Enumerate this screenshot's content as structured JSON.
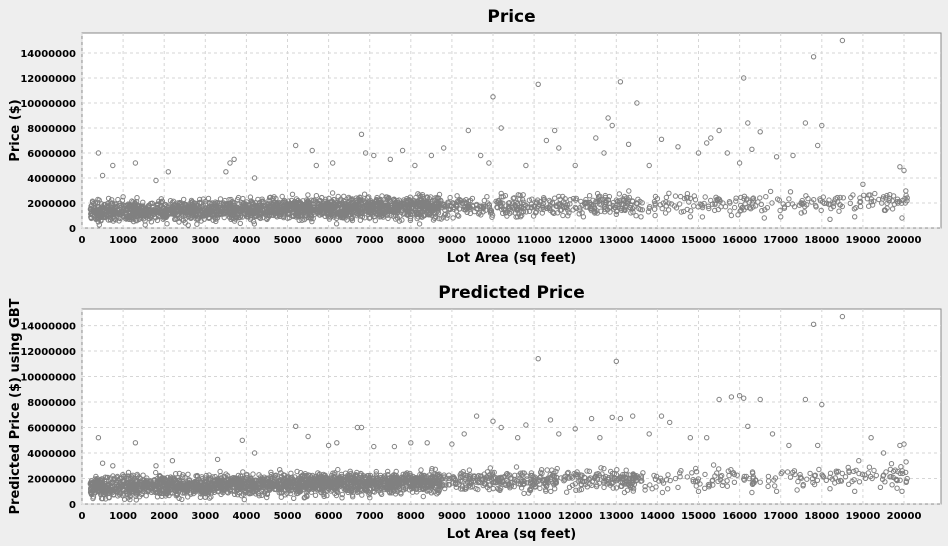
{
  "colors": {
    "background": "#eeeeee",
    "plot_background": "#ffffff",
    "point": "#808080",
    "grid": "#d6d6d6"
  },
  "chart_data": [
    {
      "type": "scatter",
      "title": "Price",
      "xlabel": "Lot Area (sq feet)",
      "ylabel": "Price ($)",
      "xlim": [
        0,
        20900
      ],
      "ylim": [
        0,
        15600000
      ],
      "xticks": [
        0,
        1000,
        2000,
        3000,
        4000,
        5000,
        6000,
        7000,
        8000,
        9000,
        10000,
        11000,
        12000,
        13000,
        14000,
        15000,
        16000,
        17000,
        18000,
        19000,
        20000
      ],
      "yticks": [
        0,
        2000000,
        4000000,
        6000000,
        8000000,
        10000000,
        12000000,
        14000000
      ],
      "grid": true,
      "legend": "none",
      "series": [
        {
          "points": [
            [
              400,
              6000000
            ],
            [
              500,
              4200000
            ],
            [
              750,
              5000000
            ],
            [
              1300,
              5200000
            ],
            [
              1000,
              2500000
            ],
            [
              1800,
              3800000
            ],
            [
              2100,
              4500000
            ],
            [
              3500,
              4500000
            ],
            [
              3600,
              5200000
            ],
            [
              3700,
              5500000
            ],
            [
              4200,
              4000000
            ],
            [
              5200,
              6600000
            ],
            [
              5600,
              6200000
            ],
            [
              5700,
              5000000
            ],
            [
              6100,
              5200000
            ],
            [
              6800,
              7500000
            ],
            [
              6900,
              6000000
            ],
            [
              7100,
              5800000
            ],
            [
              7500,
              5500000
            ],
            [
              7800,
              6200000
            ],
            [
              8100,
              5000000
            ],
            [
              8500,
              5800000
            ],
            [
              8800,
              6400000
            ],
            [
              9400,
              7800000
            ],
            [
              9700,
              5800000
            ],
            [
              9900,
              5200000
            ],
            [
              10000,
              10500000
            ],
            [
              10200,
              8000000
            ],
            [
              10800,
              5000000
            ],
            [
              11100,
              11500000
            ],
            [
              11300,
              7000000
            ],
            [
              11500,
              7800000
            ],
            [
              11600,
              6400000
            ],
            [
              12000,
              5000000
            ],
            [
              12500,
              7200000
            ],
            [
              12700,
              6000000
            ],
            [
              12800,
              8800000
            ],
            [
              12900,
              8200000
            ],
            [
              13100,
              11700000
            ],
            [
              13300,
              6700000
            ],
            [
              13500,
              10000000
            ],
            [
              13800,
              5000000
            ],
            [
              14100,
              7100000
            ],
            [
              14500,
              6500000
            ],
            [
              15000,
              6000000
            ],
            [
              15200,
              6800000
            ],
            [
              15300,
              7200000
            ],
            [
              15500,
              7800000
            ],
            [
              15700,
              6000000
            ],
            [
              16000,
              5200000
            ],
            [
              16100,
              12000000
            ],
            [
              16200,
              8400000
            ],
            [
              16300,
              6300000
            ],
            [
              16500,
              7700000
            ],
            [
              16900,
              5700000
            ],
            [
              17300,
              5800000
            ],
            [
              17600,
              8400000
            ],
            [
              17800,
              13700000
            ],
            [
              17900,
              6600000
            ],
            [
              18000,
              8200000
            ],
            [
              18500,
              15000000
            ],
            [
              19000,
              3500000
            ],
            [
              19500,
              2500000
            ],
            [
              19900,
              4900000
            ],
            [
              20000,
              4600000
            ],
            [
              20050,
              2600000
            ],
            [
              19950,
              800000
            ],
            [
              18800,
              900000
            ],
            [
              18200,
              700000
            ],
            [
              17500,
              1200000
            ],
            [
              17000,
              900000
            ],
            [
              16600,
              800000
            ],
            [
              15800,
              1000000
            ],
            [
              14800,
              900000
            ],
            [
              14200,
              1200000
            ],
            [
              13600,
              900000
            ],
            [
              13000,
              1100000
            ],
            [
              12200,
              900000
            ],
            [
              11700,
              1000000
            ],
            [
              11200,
              1200000
            ],
            [
              10600,
              900000
            ],
            [
              10300,
              1400000
            ],
            [
              9600,
              1800000
            ],
            [
              9200,
              2200000
            ]
          ]
        }
      ]
    },
    {
      "type": "scatter",
      "title": "Predicted Price",
      "xlabel": "Lot Area (sq feet)",
      "ylabel": "Predicted Price ($) using GBT",
      "xlim": [
        0,
        20900
      ],
      "ylim": [
        0,
        15300000
      ],
      "xticks": [
        0,
        1000,
        2000,
        3000,
        4000,
        5000,
        6000,
        7000,
        8000,
        9000,
        10000,
        11000,
        12000,
        13000,
        14000,
        15000,
        16000,
        17000,
        18000,
        19000,
        20000
      ],
      "yticks": [
        0,
        2000000,
        4000000,
        6000000,
        8000000,
        10000000,
        12000000,
        14000000
      ],
      "grid": true,
      "legend": "none",
      "series": [
        {
          "points": [
            [
              400,
              5200000
            ],
            [
              500,
              3200000
            ],
            [
              750,
              3000000
            ],
            [
              1300,
              4800000
            ],
            [
              1800,
              3000000
            ],
            [
              2200,
              3400000
            ],
            [
              3300,
              3500000
            ],
            [
              3900,
              5000000
            ],
            [
              4200,
              4000000
            ],
            [
              5200,
              6100000
            ],
            [
              5500,
              5300000
            ],
            [
              6000,
              4600000
            ],
            [
              6200,
              4800000
            ],
            [
              6700,
              6000000
            ],
            [
              6800,
              6000000
            ],
            [
              7100,
              4500000
            ],
            [
              7600,
              4500000
            ],
            [
              8000,
              4800000
            ],
            [
              8400,
              4800000
            ],
            [
              9000,
              4700000
            ],
            [
              9300,
              5500000
            ],
            [
              9600,
              6900000
            ],
            [
              10000,
              6500000
            ],
            [
              10200,
              6000000
            ],
            [
              10600,
              5200000
            ],
            [
              10800,
              6200000
            ],
            [
              11100,
              11400000
            ],
            [
              11400,
              6600000
            ],
            [
              11600,
              5500000
            ],
            [
              12000,
              5900000
            ],
            [
              12400,
              6700000
            ],
            [
              12600,
              5200000
            ],
            [
              12900,
              6800000
            ],
            [
              13000,
              11200000
            ],
            [
              13100,
              6700000
            ],
            [
              13400,
              6900000
            ],
            [
              13800,
              5500000
            ],
            [
              14100,
              6900000
            ],
            [
              14300,
              6400000
            ],
            [
              14800,
              5200000
            ],
            [
              15200,
              5200000
            ],
            [
              15500,
              8200000
            ],
            [
              15800,
              8400000
            ],
            [
              16000,
              8500000
            ],
            [
              16100,
              8300000
            ],
            [
              16200,
              6100000
            ],
            [
              16500,
              8200000
            ],
            [
              16800,
              5500000
            ],
            [
              17200,
              4600000
            ],
            [
              17600,
              8200000
            ],
            [
              17800,
              14100000
            ],
            [
              17900,
              4600000
            ],
            [
              18000,
              7800000
            ],
            [
              18500,
              14700000
            ],
            [
              18900,
              3400000
            ],
            [
              19200,
              5200000
            ],
            [
              19500,
              4000000
            ],
            [
              19900,
              4600000
            ],
            [
              20000,
              4700000
            ],
            [
              20050,
              3300000
            ],
            [
              19950,
              1000000
            ],
            [
              18800,
              1000000
            ],
            [
              18200,
              1200000
            ],
            [
              17400,
              1100000
            ],
            [
              16900,
              1000000
            ],
            [
              16300,
              900000
            ],
            [
              15700,
              1400000
            ],
            [
              15000,
              1000000
            ],
            [
              14500,
              1300000
            ],
            [
              13700,
              1100000
            ],
            [
              13200,
              900000
            ],
            [
              12700,
              1300000
            ],
            [
              12100,
              1100000
            ],
            [
              11500,
              1200000
            ],
            [
              11000,
              1500000
            ],
            [
              10400,
              1400000
            ],
            [
              9800,
              1600000
            ]
          ]
        }
      ]
    }
  ]
}
